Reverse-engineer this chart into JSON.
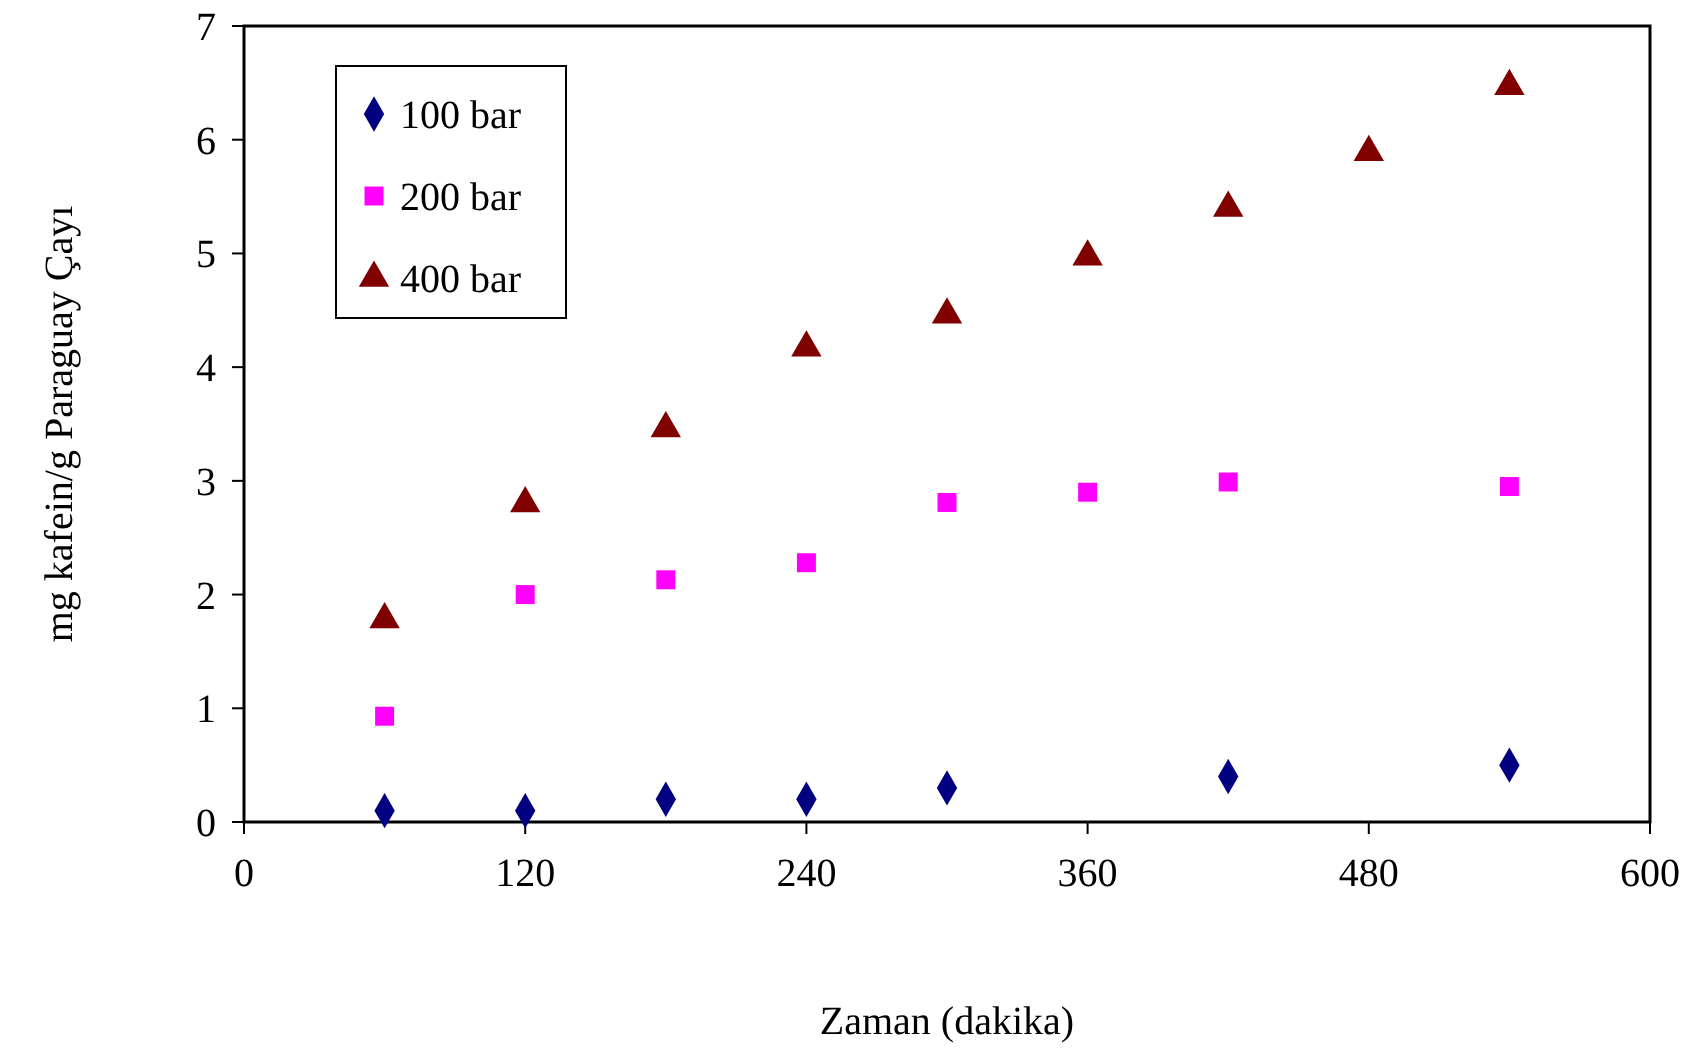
{
  "chart_data": {
    "type": "scatter",
    "xlabel": "Zaman (dakika)",
    "ylabel": "mg kafein/g Paraguay Çayı",
    "xlim": [
      0,
      600
    ],
    "xticks": [
      0,
      120,
      240,
      360,
      480,
      600
    ],
    "ylim": [
      0,
      7
    ],
    "yticks": [
      0,
      1,
      2,
      3,
      4,
      5,
      6,
      7
    ],
    "grid": false,
    "legend": "top left",
    "series": [
      {
        "name": "100 bar",
        "color": "#000080",
        "marker": "diamond",
        "x": [
          60,
          120,
          180,
          240,
          300,
          420,
          540
        ],
        "values": [
          0.1,
          0.1,
          0.2,
          0.2,
          0.3,
          0.4,
          0.5
        ]
      },
      {
        "name": "200 bar",
        "color": "#ff00ff",
        "marker": "square",
        "x": [
          60,
          120,
          180,
          240,
          300,
          360,
          420,
          540
        ],
        "values": [
          0.93,
          2.0,
          2.13,
          2.28,
          2.81,
          2.9,
          2.99,
          2.95
        ]
      },
      {
        "name": "400 bar",
        "color": "#800000",
        "marker": "triangle",
        "x": [
          60,
          120,
          180,
          240,
          300,
          360,
          420,
          480,
          540
        ],
        "values": [
          1.78,
          2.8,
          3.46,
          4.17,
          4.46,
          4.97,
          5.4,
          5.89,
          6.47
        ]
      }
    ]
  }
}
